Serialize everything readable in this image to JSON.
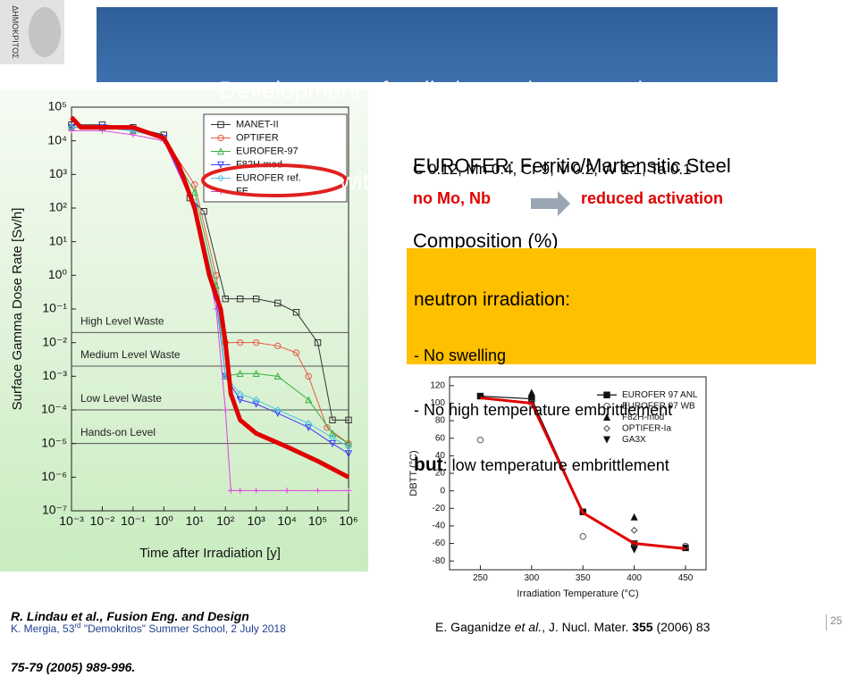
{
  "logo_text": "ΔΗΜΟΚΡΙΤΟΣ",
  "title": [
    "Development of radiation resistant steels",
    "with low activation"
  ],
  "composition": {
    "heading": [
      "EUROFER: Ferritic/Martensitic Steel",
      "Composition (%)"
    ],
    "elements": "C 0.12, Mn 0.4, Cr 9, V 0.2, W 1.1, Ta 0.1",
    "removed": "no Mo, Nb",
    "result": "reduced activation"
  },
  "irradiation": {
    "heading": "neutron irradiation:",
    "items": [
      "- No swelling",
      "- No high temperature embrittlement"
    ],
    "emphasis": "but",
    "last": ": low temperature embrittlement"
  },
  "reference_left": [
    "R. Lindau et al., Fusion Eng. and Design",
    "75-79 (2005) 989-996."
  ],
  "reference_right": {
    "authors": "E. Gaganidze ",
    "etal": "et al.",
    "journal": ", J. Nucl. Mater. ",
    "volume": "355",
    "rest": " (2006) 83"
  },
  "footer": {
    "before": "K. Mergia, 53",
    "sup": "rd",
    "after": " \"Demokritos\" Summer School, 2 July 2018"
  },
  "page_number": "25",
  "chart_data": [
    {
      "type": "line",
      "ylabel": "Surface Gamma Dose Rate [Sv/h]",
      "xlabel": "Time after Irradiation [y]",
      "xscale": "log",
      "yscale": "log",
      "xlim": [
        0.001,
        1000000
      ],
      "ylim": [
        1e-07,
        100000
      ],
      "xticks": [
        {
          "value": 0.001,
          "label": "10⁻³"
        },
        {
          "value": 0.01,
          "label": "10⁻²"
        },
        {
          "value": 0.1,
          "label": "10⁻¹"
        },
        {
          "value": 1,
          "label": "10⁰"
        },
        {
          "value": 10,
          "label": "10¹"
        },
        {
          "value": 100,
          "label": "10²"
        },
        {
          "value": 1000,
          "label": "10³"
        },
        {
          "value": 10000,
          "label": "10⁴"
        },
        {
          "value": 100000,
          "label": "10⁵"
        },
        {
          "value": 1000000,
          "label": "10⁶"
        }
      ],
      "yticks": [
        {
          "value": 1e-07,
          "label": "10⁻⁷"
        },
        {
          "value": 1e-06,
          "label": "10⁻⁶"
        },
        {
          "value": 1e-05,
          "label": "10⁻⁵"
        },
        {
          "value": 0.0001,
          "label": "10⁻⁴"
        },
        {
          "value": 0.001,
          "label": "10⁻³"
        },
        {
          "value": 0.01,
          "label": "10⁻²"
        },
        {
          "value": 0.1,
          "label": "10⁻¹"
        },
        {
          "value": 1,
          "label": "10⁰"
        },
        {
          "value": 10,
          "label": "10¹"
        },
        {
          "value": 100,
          "label": "10²"
        },
        {
          "value": 1000,
          "label": "10³"
        },
        {
          "value": 10000,
          "label": "10⁴"
        },
        {
          "value": 100000,
          "label": "10⁵"
        }
      ],
      "legend": "upper right",
      "legend_frame": true,
      "thresholds": [
        0.02,
        0.002,
        0.0001,
        1e-05
      ],
      "zones": [
        "High Level Waste",
        "Medium Level Waste",
        "Low Level Waste",
        "Hands-on Level"
      ],
      "series": [
        {
          "name": "MANET-II",
          "color": "#333333",
          "marker": "square-open",
          "line": true,
          "linewidth": 1,
          "x": [
            0.001,
            0.01,
            0.1,
            1,
            7,
            20,
            100,
            300,
            1000,
            5000,
            20000,
            100000,
            300000,
            1000000
          ],
          "values": [
            30000,
            30000,
            25000,
            15000,
            200,
            80,
            0.2,
            0.2,
            0.2,
            0.15,
            0.08,
            0.01,
            5e-05,
            5e-05
          ]
        },
        {
          "name": "OPTIFER",
          "color": "#e8584a",
          "marker": "circle-open",
          "line": true,
          "linewidth": 1,
          "x": [
            0.001,
            0.01,
            0.1,
            1,
            10,
            50,
            100,
            300,
            1000,
            5000,
            20000,
            50000,
            200000,
            1000000
          ],
          "values": [
            25000,
            25000,
            20000,
            12000,
            500,
            1,
            0.01,
            0.01,
            0.01,
            0.008,
            0.005,
            0.001,
            3e-05,
            1e-05
          ]
        },
        {
          "name": "EUROFER-97",
          "color": "#3cb043",
          "marker": "triangle-open",
          "line": true,
          "linewidth": 1,
          "x": [
            0.001,
            0.01,
            0.1,
            1,
            10,
            50,
            100,
            300,
            1000,
            5000,
            50000,
            300000,
            1000000
          ],
          "values": [
            25000,
            25000,
            20000,
            12000,
            300,
            0.5,
            0.001,
            0.0012,
            0.0012,
            0.001,
            0.0002,
            2e-05,
            1e-05
          ]
        },
        {
          "name": "F82H-mod",
          "color": "#3a3aff",
          "marker": "triangle-down-open",
          "line": true,
          "linewidth": 1,
          "x": [
            0.001,
            0.01,
            0.1,
            1,
            10,
            50,
            100,
            300,
            1000,
            5000,
            50000,
            300000,
            1000000
          ],
          "values": [
            25000,
            25000,
            20000,
            12000,
            100,
            0.2,
            0.001,
            0.0002,
            0.00015,
            8e-05,
            3e-05,
            1e-05,
            5e-06
          ]
        },
        {
          "name": "EUROFER ref.",
          "color": "#4fc6e0",
          "marker": "diamond-open",
          "line": true,
          "linewidth": 1,
          "x": [
            0.001,
            0.01,
            0.1,
            1,
            10,
            50,
            100,
            300,
            1000,
            5000,
            50000,
            300000,
            1000000
          ],
          "values": [
            25000,
            25000,
            20000,
            12000,
            150,
            0.3,
            0.001,
            0.0003,
            0.0002,
            0.0001,
            4e-05,
            1.5e-05,
            8e-06
          ]
        },
        {
          "name": "FE",
          "color": "#e040e0",
          "marker": "plus",
          "line": true,
          "linewidth": 1,
          "x": [
            0.001,
            0.01,
            0.1,
            1,
            10,
            50,
            100,
            150,
            300,
            1000,
            10000,
            100000,
            1000000
          ],
          "values": [
            20000,
            20000,
            15000,
            10000,
            100,
            0.1,
            0.0001,
            4e-07,
            4e-07,
            4e-07,
            4e-07,
            4e-07,
            4e-07
          ]
        },
        {
          "color": "#e00000",
          "marker": "none",
          "line": true,
          "linewidth": 5,
          "x": [
            0.001,
            0.002,
            0.01,
            0.1,
            1,
            3,
            10,
            30,
            70,
            100,
            150,
            300,
            1000,
            10000,
            100000,
            1000000
          ],
          "values": [
            50000,
            25000,
            25000,
            25000,
            12000,
            2000,
            100,
            1,
            0.1,
            0.01,
            0.0003,
            5e-05,
            2e-05,
            8e-06,
            3e-06,
            1e-06
          ]
        }
      ]
    },
    {
      "type": "line",
      "ylabel": "DBTT (°C)",
      "xlabel": "Irradiation Temperature (°C)",
      "xlim": [
        220,
        470
      ],
      "ylim": [
        -90,
        130
      ],
      "xticks": [
        250,
        300,
        350,
        400,
        450
      ],
      "yticks": [
        -80,
        -60,
        -40,
        -20,
        0,
        20,
        40,
        60,
        80,
        100,
        120
      ],
      "legend": "upper right",
      "legend_frame": false,
      "series": [
        {
          "name": "EUROFER 97 ANL",
          "color": "#111111",
          "marker": "square",
          "line": true,
          "linewidth": 1.2,
          "x": [
            250,
            300,
            350,
            400,
            450
          ],
          "values": [
            108,
            105,
            -24,
            -60,
            -65
          ]
        },
        {
          "name": "EUROFER 97 WB",
          "color": "#555555",
          "marker": "circle-open",
          "line": false,
          "x": [
            250,
            300,
            350,
            400,
            450
          ],
          "values": [
            58,
            100,
            -52,
            -60,
            -63
          ]
        },
        {
          "name": "F82H-mod",
          "color": "#111111",
          "marker": "triangle",
          "line": false,
          "x": [
            300,
            400
          ],
          "values": [
            112,
            -30
          ]
        },
        {
          "name": "OPTIFER-Ia",
          "color": "#444444",
          "marker": "diamond-open",
          "line": false,
          "x": [
            400
          ],
          "values": [
            -45
          ]
        },
        {
          "name": "GA3X",
          "color": "#111111",
          "marker": "triangle-down",
          "line": false,
          "x": [
            400
          ],
          "values": [
            -67
          ]
        },
        {
          "color": "#e00000",
          "marker": "none",
          "line": true,
          "linewidth": 3,
          "x": [
            250,
            300,
            350,
            400,
            450
          ],
          "values": [
            106,
            100,
            -25,
            -60,
            -66
          ]
        }
      ]
    }
  ]
}
